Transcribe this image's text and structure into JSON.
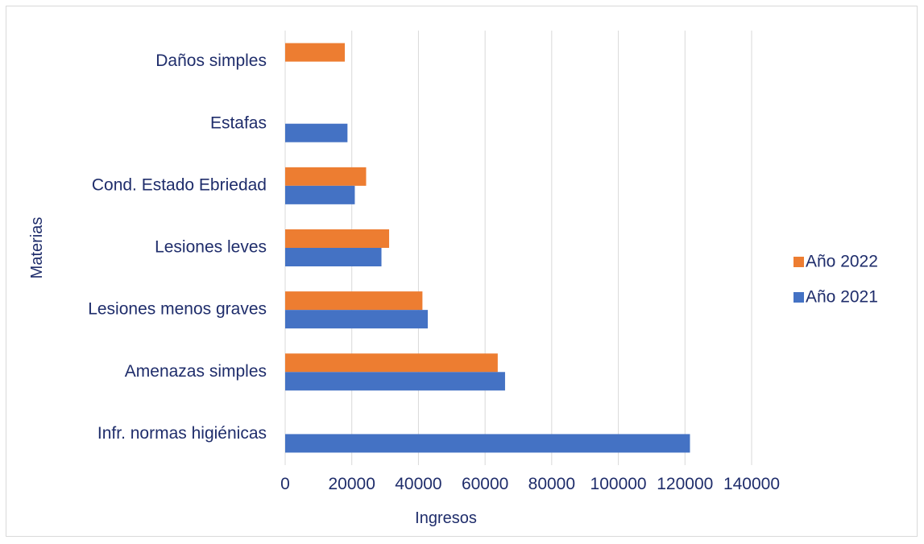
{
  "chart_data": {
    "type": "bar",
    "orientation": "horizontal",
    "categories": [
      "Infr. normas higiénicas",
      "Amenazas simples",
      "Lesiones menos graves",
      "Lesiones leves",
      "Cond. Estado Ebriedad",
      "Estafas",
      "Daños simples"
    ],
    "series": [
      {
        "name": "Año 2021",
        "color": "#4472c4",
        "values": [
          121500,
          66000,
          42800,
          28900,
          20900,
          18700,
          null
        ]
      },
      {
        "name": "Año 2022",
        "color": "#ed7d31",
        "values": [
          null,
          63800,
          41200,
          31200,
          24300,
          null,
          17900
        ]
      }
    ],
    "xlabel": "Ingresos",
    "ylabel": "Materias",
    "xlim": [
      0,
      140000
    ],
    "xticks": [
      "0",
      "20000",
      "40000",
      "60000",
      "80000",
      "100000",
      "120000",
      "140000"
    ],
    "grid": "vertical",
    "legend_position": "right"
  }
}
